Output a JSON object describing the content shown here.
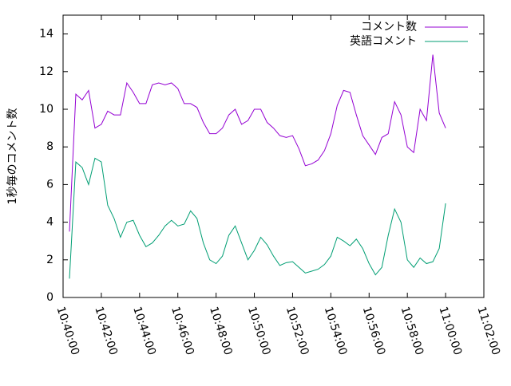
{
  "chart_data": {
    "type": "line",
    "ylabel": "1秒毎のコメント数",
    "x": [
      "10:40:20",
      "10:40:40",
      "10:41:00",
      "10:41:20",
      "10:41:40",
      "10:42:00",
      "10:42:20",
      "10:42:40",
      "10:43:00",
      "10:43:20",
      "10:43:40",
      "10:44:00",
      "10:44:20",
      "10:44:40",
      "10:45:00",
      "10:45:20",
      "10:45:40",
      "10:46:00",
      "10:46:20",
      "10:46:40",
      "10:47:00",
      "10:47:20",
      "10:47:40",
      "10:48:00",
      "10:48:20",
      "10:48:40",
      "10:49:00",
      "10:49:20",
      "10:49:40",
      "10:50:00",
      "10:50:20",
      "10:50:40",
      "10:51:00",
      "10:51:20",
      "10:51:40",
      "10:52:00",
      "10:52:20",
      "10:52:40",
      "10:53:00",
      "10:53:20",
      "10:53:40",
      "10:54:00",
      "10:54:20",
      "10:54:40",
      "10:55:00",
      "10:55:20",
      "10:55:40",
      "10:56:00",
      "10:56:20",
      "10:56:40",
      "10:57:00",
      "10:57:20",
      "10:57:40",
      "10:58:00",
      "10:58:20",
      "10:58:40",
      "10:59:00",
      "10:59:20",
      "10:59:40",
      "11:00:00"
    ],
    "series": [
      {
        "name": "コメント数",
        "color": "#9400d3",
        "values": [
          3.5,
          10.8,
          10.5,
          11.0,
          9.0,
          9.2,
          9.9,
          9.7,
          9.7,
          11.4,
          10.9,
          10.3,
          10.3,
          11.3,
          11.4,
          11.3,
          11.4,
          11.1,
          10.3,
          10.3,
          10.1,
          9.3,
          8.7,
          8.7,
          9.0,
          9.7,
          10.0,
          9.2,
          9.4,
          10.0,
          10.0,
          9.3,
          9.0,
          8.6,
          8.5,
          8.6,
          7.9,
          7.0,
          7.1,
          7.3,
          7.8,
          8.7,
          10.2,
          11.0,
          10.9,
          9.7,
          8.6,
          8.1,
          7.6,
          8.5,
          8.7,
          10.4,
          9.7,
          8.0,
          7.7,
          10.0,
          9.4,
          12.9,
          9.8,
          9.0
        ]
      },
      {
        "name": "英語コメント",
        "color": "#009e73",
        "values": [
          1.0,
          7.2,
          6.9,
          6.0,
          7.4,
          7.2,
          4.9,
          4.2,
          3.2,
          4.0,
          4.1,
          3.3,
          2.7,
          2.9,
          3.3,
          3.8,
          4.1,
          3.8,
          3.9,
          4.6,
          4.2,
          2.9,
          2.0,
          1.8,
          2.2,
          3.3,
          3.8,
          2.9,
          2.0,
          2.5,
          3.2,
          2.8,
          2.2,
          1.7,
          1.85,
          1.9,
          1.6,
          1.3,
          1.4,
          1.5,
          1.75,
          2.2,
          3.2,
          3.0,
          2.75,
          3.1,
          2.6,
          1.8,
          1.2,
          1.6,
          3.3,
          4.7,
          4.0,
          2.0,
          1.6,
          2.1,
          1.8,
          1.9,
          2.6,
          5.0
        ]
      }
    ],
    "xlim": [
      "10:40:00",
      "11:02:00"
    ],
    "xticks": [
      "10:40:00",
      "10:42:00",
      "10:44:00",
      "10:46:00",
      "10:48:00",
      "10:50:00",
      "10:52:00",
      "10:54:00",
      "10:56:00",
      "10:58:00",
      "11:00:00",
      "11:02:00"
    ],
    "ylim": [
      0,
      15
    ],
    "yticks": [
      0,
      2,
      4,
      6,
      8,
      10,
      12,
      14
    ],
    "legend": "top-right"
  }
}
